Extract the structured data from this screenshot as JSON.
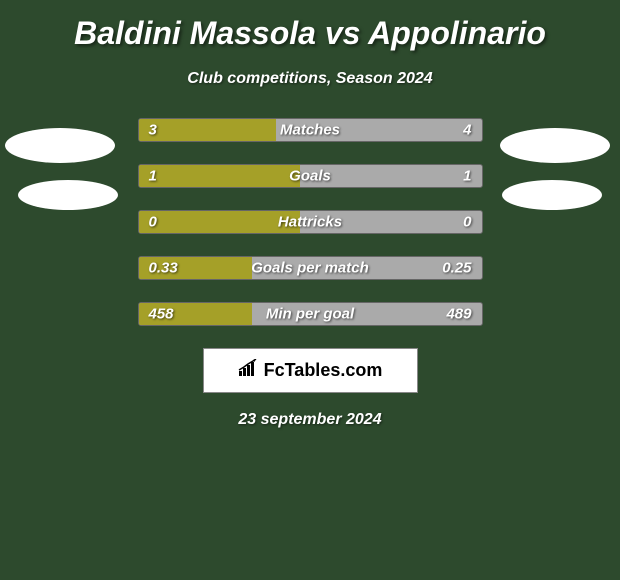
{
  "title": "Baldini Massola vs Appolinario",
  "subtitle": "Club competitions, Season 2024",
  "date": "23 september 2024",
  "brand": "FcTables.com",
  "colors": {
    "background": "#2d4a2d",
    "bar_fill": "#a5a028",
    "bar_empty": "#aaaaaa",
    "text": "#ffffff",
    "avatar": "#ffffff",
    "logo_bg": "#ffffff",
    "logo_text": "#000000"
  },
  "stats": [
    {
      "label": "Matches",
      "left_value": "3",
      "right_value": "4",
      "left_pct": 40,
      "right_pct": 0
    },
    {
      "label": "Goals",
      "left_value": "1",
      "right_value": "1",
      "left_pct": 47,
      "right_pct": 0
    },
    {
      "label": "Hattricks",
      "left_value": "0",
      "right_value": "0",
      "left_pct": 47,
      "right_pct": 0
    },
    {
      "label": "Goals per match",
      "left_value": "0.33",
      "right_value": "0.25",
      "left_pct": 33,
      "right_pct": 0
    },
    {
      "label": "Min per goal",
      "left_value": "458",
      "right_value": "489",
      "left_pct": 33,
      "right_pct": 0
    }
  ]
}
